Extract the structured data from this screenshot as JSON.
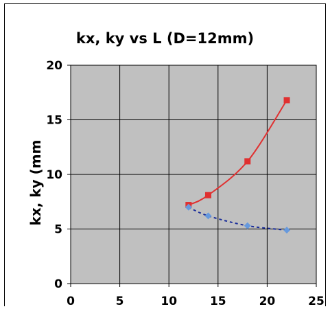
{
  "chart_data": {
    "type": "line",
    "title": "kx, ky vs L (D=12mm)",
    "xlabel": "",
    "ylabel": "kx, ky (mm",
    "xlim": [
      0,
      25
    ],
    "ylim": [
      0,
      20
    ],
    "xticks": [
      0,
      5,
      10,
      15,
      20,
      25
    ],
    "yticks": [
      0,
      5,
      10,
      15,
      20
    ],
    "grid": true,
    "plot_background": "#c0c0c0",
    "series": [
      {
        "x": [
          12,
          14,
          18,
          22
        ],
        "values": [
          7.2,
          8.1,
          11.2,
          16.8
        ],
        "color": "#e03030",
        "marker": "square",
        "line": "solid"
      },
      {
        "x": [
          12,
          14,
          18,
          22
        ],
        "values": [
          7.0,
          6.2,
          5.3,
          4.9
        ],
        "color": "#6699dd",
        "line_color": "#1a2d9a",
        "marker": "diamond",
        "line": "dashed"
      }
    ]
  }
}
